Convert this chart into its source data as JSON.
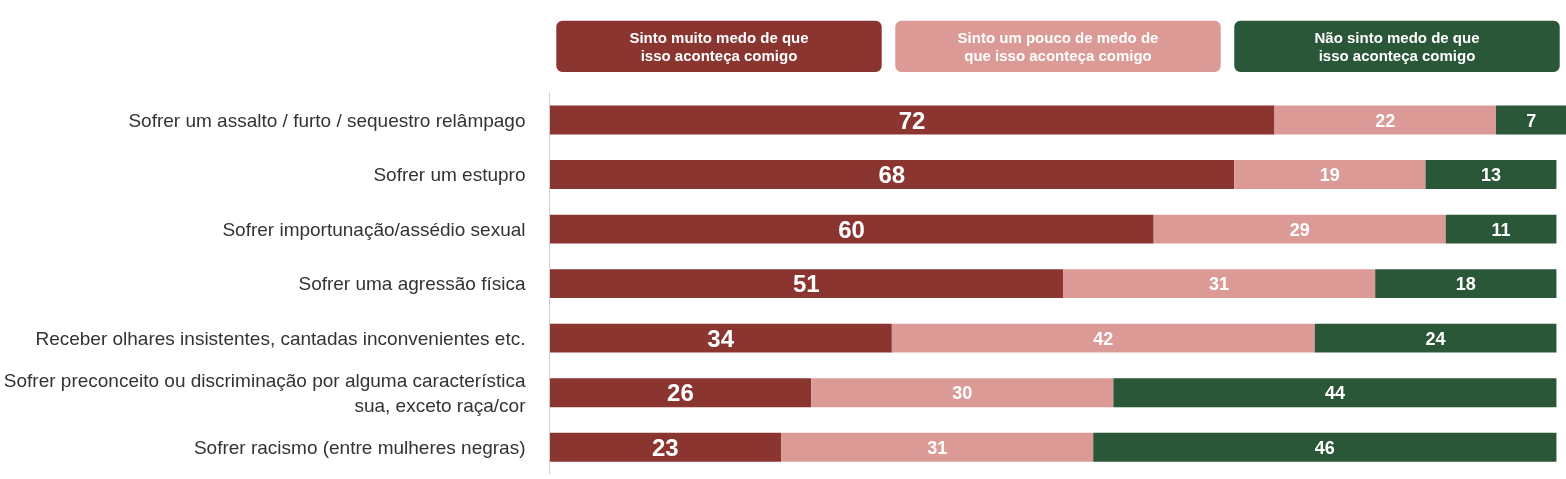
{
  "chart_data": {
    "type": "bar",
    "orientation": "horizontal",
    "stacked": true,
    "data_labels": true,
    "legend": "top",
    "grid": false,
    "categories": [
      "Sofrer um assalto / furto / sequestro relâmpago",
      "Sofrer um estupro",
      "Sofrer importunação/assédio sexual",
      "Sofrer uma agressão física",
      "Receber olhares insistentes, cantadas inconvenientes etc.",
      "Sofrer preconceito ou discriminação por alguma característica\nsua, exceto raça/cor",
      "Sofrer racismo (entre mulheres negras)"
    ],
    "series": [
      {
        "name": "Sinto muito medo de que isso aconteça comigo",
        "color": "#8b3530",
        "values": [
          72,
          68,
          60,
          51,
          34,
          26,
          23
        ]
      },
      {
        "name": "Sinto um pouco de medo de que isso aconteça comigo",
        "color": "#dc9a96",
        "values": [
          22,
          19,
          29,
          31,
          42,
          30,
          31
        ]
      },
      {
        "name": "Não sinto medo de que isso aconteça comigo",
        "color": "#2a5737",
        "values": [
          7,
          13,
          11,
          18,
          24,
          44,
          46
        ]
      }
    ]
  }
}
